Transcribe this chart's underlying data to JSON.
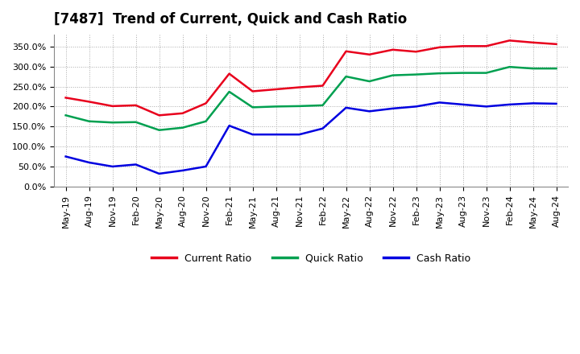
{
  "title": "[7487]  Trend of Current, Quick and Cash Ratio",
  "x_labels": [
    "May-19",
    "Aug-19",
    "Nov-19",
    "Feb-20",
    "May-20",
    "Aug-20",
    "Nov-20",
    "Feb-21",
    "May-21",
    "Aug-21",
    "Nov-21",
    "Feb-22",
    "May-22",
    "Aug-22",
    "Nov-22",
    "Feb-23",
    "May-23",
    "Aug-23",
    "Nov-23",
    "Feb-24",
    "May-24",
    "Aug-24"
  ],
  "current_ratio": [
    222,
    212,
    201,
    203,
    178,
    183,
    208,
    282,
    238,
    243,
    248,
    252,
    338,
    330,
    342,
    337,
    348,
    351,
    351,
    365,
    360,
    356
  ],
  "quick_ratio": [
    178,
    163,
    160,
    161,
    141,
    147,
    163,
    237,
    198,
    200,
    201,
    203,
    275,
    263,
    278,
    280,
    283,
    284,
    284,
    299,
    295,
    295
  ],
  "cash_ratio": [
    75,
    60,
    50,
    55,
    32,
    40,
    50,
    152,
    130,
    130,
    130,
    145,
    197,
    188,
    195,
    200,
    210,
    205,
    200,
    205,
    208,
    207
  ],
  "current_color": "#e8001c",
  "quick_color": "#00a050",
  "cash_color": "#0000e0",
  "ylim": [
    0,
    380
  ],
  "yticks": [
    0,
    50,
    100,
    150,
    200,
    250,
    300,
    350
  ],
  "background_color": "#ffffff",
  "grid_color": "#aaaaaa",
  "legend_labels": [
    "Current Ratio",
    "Quick Ratio",
    "Cash Ratio"
  ]
}
